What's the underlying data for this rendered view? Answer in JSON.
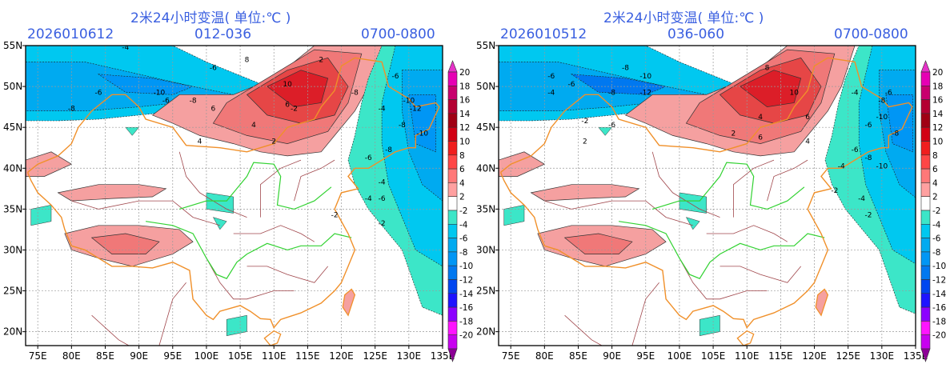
{
  "panels": [
    {
      "title": "2米24小时变温( 单位:℃ )",
      "init_time": "2026010612",
      "forecast_range": "012-036",
      "valid_time": "0700-0800"
    },
    {
      "title": "2米24小时变温( 单位:℃ )",
      "init_time": "2026010512",
      "forecast_range": "036-060",
      "valid_time": "0700-0800"
    }
  ],
  "axes": {
    "lat_labels": [
      "55N",
      "50N",
      "45N",
      "40N",
      "35N",
      "30N",
      "25N",
      "20N"
    ],
    "lon_labels": [
      "75E",
      "80E",
      "85E",
      "90E",
      "95E",
      "100E",
      "105E",
      "110E",
      "115E",
      "120E",
      "125E",
      "130E",
      "135E"
    ]
  },
  "colorbar": {
    "labels": [
      "20",
      "18",
      "16",
      "14",
      "12",
      "10",
      "8",
      "6",
      "4",
      "2",
      "-2",
      "-4",
      "-6",
      "-8",
      "-10",
      "-12",
      "-14",
      "-16",
      "-18",
      "-20"
    ],
    "colors": [
      "#e600b4",
      "#c8006e",
      "#b40032",
      "#a00014",
      "#d20014",
      "#f01e1e",
      "#ff4646",
      "#ff7878",
      "#ffa0a0",
      "#ffffff",
      "#3ce6c8",
      "#00c8f0",
      "#00aaf0",
      "#0096f5",
      "#0078f0",
      "#0046f0",
      "#1e14ff",
      "#8c00ff",
      "#ff14ff",
      "#c800f0"
    ],
    "over_color": "#e632c8",
    "under_color": "#8c0096"
  },
  "map_colors": {
    "warm2": "#f5a0a0",
    "warm4": "#f07878",
    "warm6": "#e64646",
    "warm8": "#dc1e28",
    "warm10": "#b4141e",
    "cold2": "#3ce6c8",
    "cold4": "#00c8f0",
    "cold6": "#00aaf0",
    "cold8": "#0096f5",
    "cold10": "#0078f0",
    "border": "#f0902a",
    "province": "#a0464b",
    "river": "#32d232"
  },
  "contour_labels": [
    [
      "-4",
      "-6",
      "-8",
      "-10",
      "-6",
      "-8",
      "-6",
      "-2",
      "2",
      "4",
      "6",
      "8",
      "10",
      "6",
      "4",
      "2",
      "-4",
      "-6",
      "-8",
      "-10",
      "-12",
      "-8",
      "-10",
      "-6",
      "-4",
      "-2",
      "-8",
      "-6",
      "-4",
      "-2"
    ],
    [
      "-6",
      "-4",
      "-6",
      "-8",
      "-10",
      "-12",
      "-8",
      "-6",
      "-2",
      "2",
      "4",
      "6",
      "8",
      "10",
      "6",
      "4",
      "2",
      "-4",
      "-6",
      "-8",
      "-10",
      "-8",
      "-10",
      "-6",
      "-4",
      "-2",
      "-8",
      "-6",
      "-4",
      "-2"
    ]
  ]
}
